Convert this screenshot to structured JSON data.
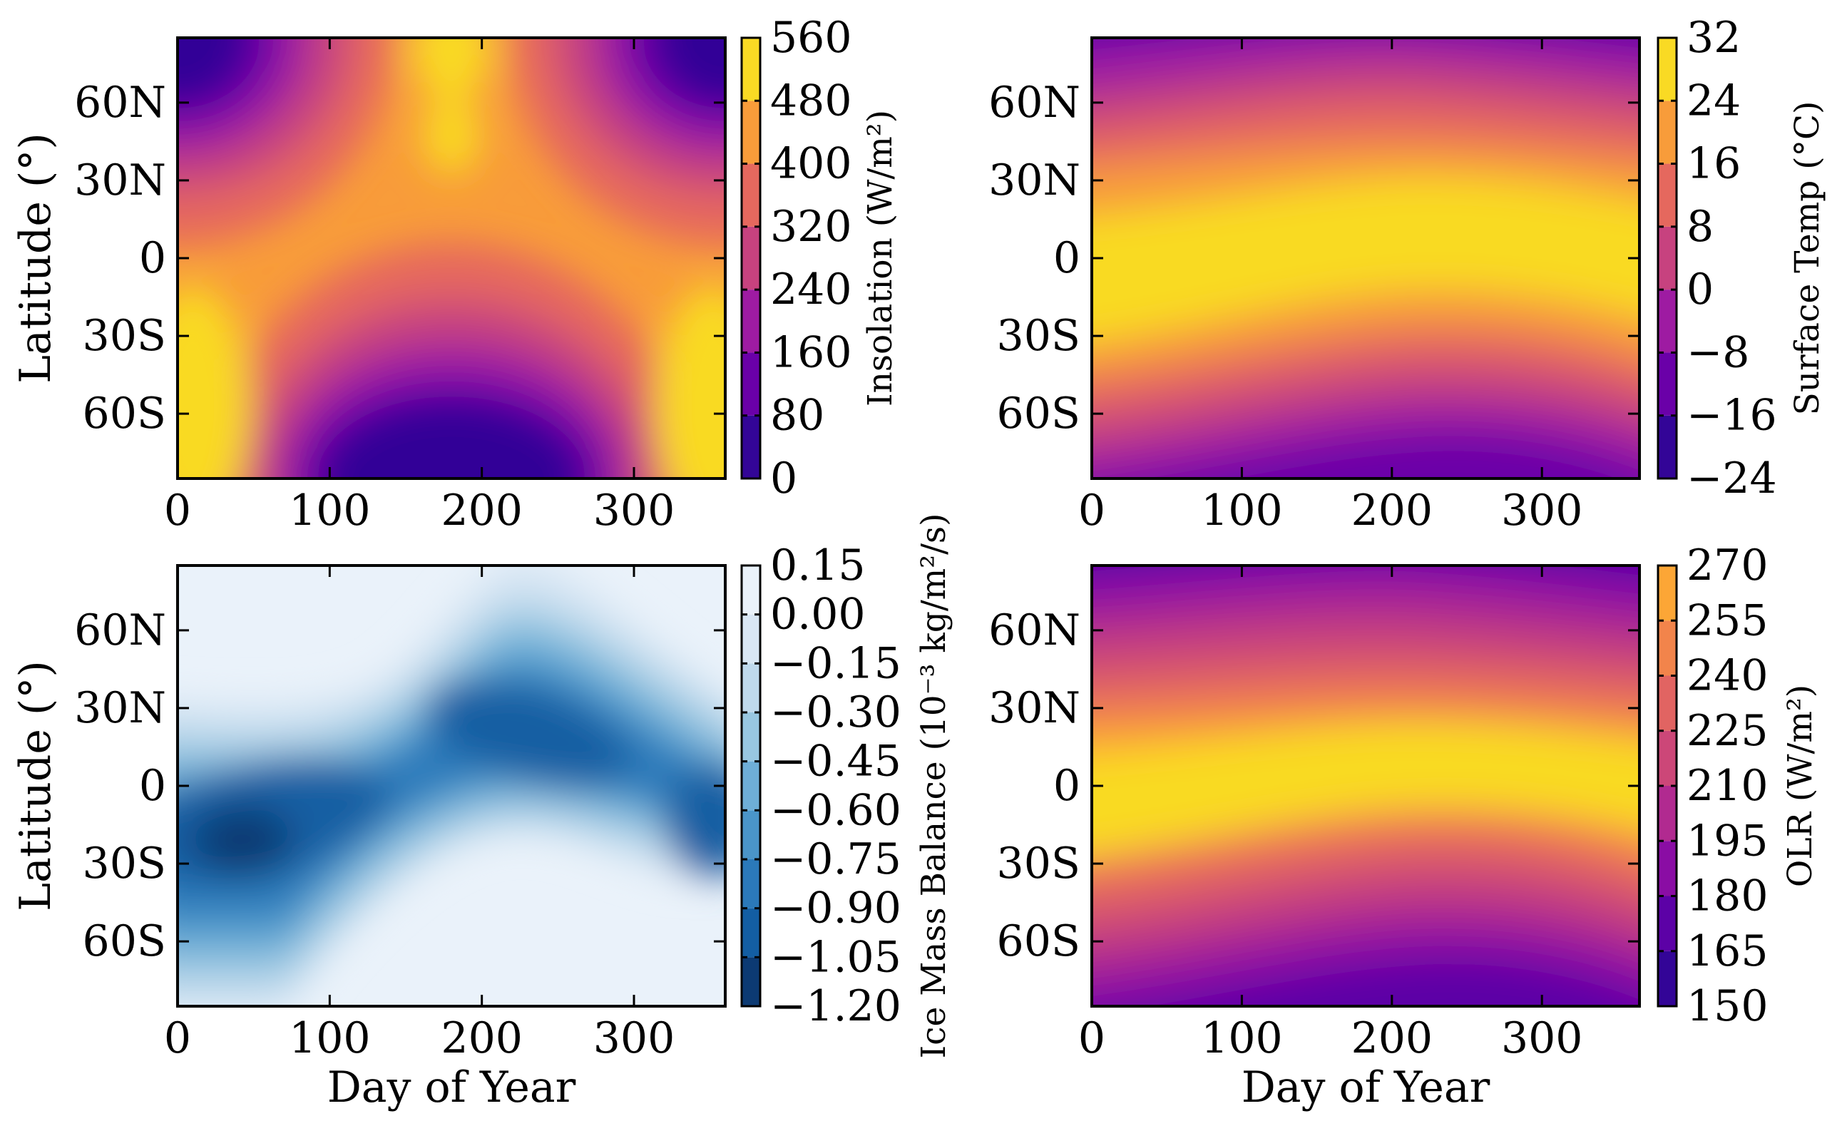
{
  "chart_data": [
    {
      "type": "heatmap",
      "panel": "top-left",
      "xlabel": "",
      "ylabel": "Latitude (°)",
      "xlim": [
        0,
        360
      ],
      "ylim": [
        -85,
        85
      ],
      "xticks": [
        0,
        100,
        200,
        300
      ],
      "xtick_labels": [
        "0",
        "100",
        "200",
        "300"
      ],
      "yticks": [
        60,
        30,
        0,
        -30,
        -60
      ],
      "ytick_labels": [
        "60N",
        "30N",
        "0",
        "30S",
        "60S"
      ],
      "colormap": "plasma",
      "colorbar": {
        "label": "Insolation (W/m²)",
        "levels": [
          0,
          80,
          160,
          240,
          320,
          400,
          480,
          560
        ],
        "tick_labels": [
          "0",
          "80",
          "160",
          "240",
          "320",
          "400",
          "480",
          "560"
        ],
        "colors": [
          "#330597",
          "#6a00a8",
          "#9e1ba2",
          "#c7427f",
          "#e5685e",
          "#f89c3a",
          "#f9da24"
        ]
      },
      "grid": false
    },
    {
      "type": "heatmap",
      "panel": "top-right",
      "xlabel": "",
      "ylabel": "",
      "xlim": [
        0,
        365
      ],
      "ylim": [
        -85,
        85
      ],
      "xticks": [
        0,
        100,
        200,
        300
      ],
      "xtick_labels": [
        "0",
        "100",
        "200",
        "300"
      ],
      "yticks": [
        60,
        30,
        0,
        -30,
        -60
      ],
      "ytick_labels": [
        "60N",
        "30N",
        "0",
        "30S",
        "60S"
      ],
      "colormap": "plasma",
      "colorbar": {
        "label": "Surface Temp (°C)",
        "levels": [
          -24,
          -16,
          -8,
          0,
          8,
          16,
          24,
          32
        ],
        "tick_labels": [
          "−24",
          "−16",
          "−8",
          "0",
          "8",
          "16",
          "24",
          "32"
        ],
        "colors": [
          "#330597",
          "#6a00a8",
          "#9e1ba2",
          "#c7427f",
          "#e5685e",
          "#f89c3a",
          "#f9da24"
        ]
      },
      "grid": false
    },
    {
      "type": "heatmap",
      "panel": "bottom-left",
      "xlabel": "Day of Year",
      "ylabel": "Latitude (°)",
      "xlim": [
        0,
        360
      ],
      "ylim": [
        -85,
        85
      ],
      "xticks": [
        0,
        100,
        200,
        300
      ],
      "xtick_labels": [
        "0",
        "100",
        "200",
        "300"
      ],
      "yticks": [
        60,
        30,
        0,
        -30,
        -60
      ],
      "ytick_labels": [
        "60N",
        "30N",
        "0",
        "30S",
        "60S"
      ],
      "colormap": "Blues_r",
      "colorbar": {
        "label": "Ice Mass Balance (10⁻³ kg/m²/s)",
        "levels": [
          -1.2,
          -1.05,
          -0.9,
          -0.75,
          -0.6,
          -0.45,
          -0.3,
          -0.15,
          0.0,
          0.15
        ],
        "tick_labels": [
          "−1.20",
          "−1.05",
          "−0.90",
          "−0.75",
          "−0.60",
          "−0.45",
          "−0.30",
          "−0.15",
          "0.00",
          "0.15"
        ],
        "colors": [
          "#0c3a73",
          "#135ea3",
          "#2b79ba",
          "#4a95c9",
          "#6eaed7",
          "#98c7e1",
          "#bfd9ec",
          "#d9e7f4",
          "#eaf2fa"
        ]
      },
      "grid": false
    },
    {
      "type": "heatmap",
      "panel": "bottom-right",
      "xlabel": "Day of Year",
      "ylabel": "",
      "xlim": [
        0,
        365
      ],
      "ylim": [
        -85,
        85
      ],
      "xticks": [
        0,
        100,
        200,
        300
      ],
      "xtick_labels": [
        "0",
        "100",
        "200",
        "300"
      ],
      "yticks": [
        60,
        30,
        0,
        -30,
        -60
      ],
      "ytick_labels": [
        "60N",
        "30N",
        "0",
        "30S",
        "60S"
      ],
      "colormap": "plasma",
      "colorbar": {
        "label": "OLR (W/m²)",
        "levels": [
          150,
          165,
          180,
          195,
          210,
          225,
          240,
          255,
          270
        ],
        "tick_labels": [
          "150",
          "165",
          "180",
          "195",
          "210",
          "225",
          "240",
          "255",
          "270"
        ],
        "colors": [
          "#330597",
          "#5c01a6",
          "#8a0da4",
          "#b12a90",
          "#cc4778",
          "#e16462",
          "#f2844b",
          "#fca636",
          "#f9da24"
        ]
      },
      "grid": false
    }
  ]
}
